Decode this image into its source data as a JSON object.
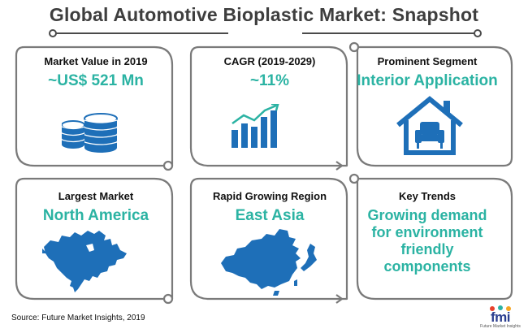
{
  "title": "Global Automotive Bioplastic Market: Snapshot",
  "cards": [
    {
      "label": "Market Value in 2019",
      "value": "~US$ 521 Mn",
      "icon": "coins-stack-icon"
    },
    {
      "label": "CAGR (2019-2029)",
      "value": "~11%",
      "icon": "growth-bar-chart-icon"
    },
    {
      "label": "Prominent Segment",
      "value": "Interior Application",
      "icon": "house-armchair-icon"
    },
    {
      "label": "Largest Market",
      "value": "North America",
      "icon": "north-america-map-icon"
    },
    {
      "label": "Rapid Growing Region",
      "value": "East Asia",
      "icon": "east-asia-map-icon"
    },
    {
      "label": "Key Trends",
      "value": "Growing demand for environment friendly components",
      "icon": ""
    }
  ],
  "source": "Source: Future Market Insights, 2019",
  "logo": {
    "text": "fmi",
    "subtext": "Future Market Insights"
  },
  "colors": {
    "accent": "#2bb3a3",
    "icon_blue": "#1e6fb8",
    "frame": "#7a7a7a",
    "text": "#111111"
  }
}
